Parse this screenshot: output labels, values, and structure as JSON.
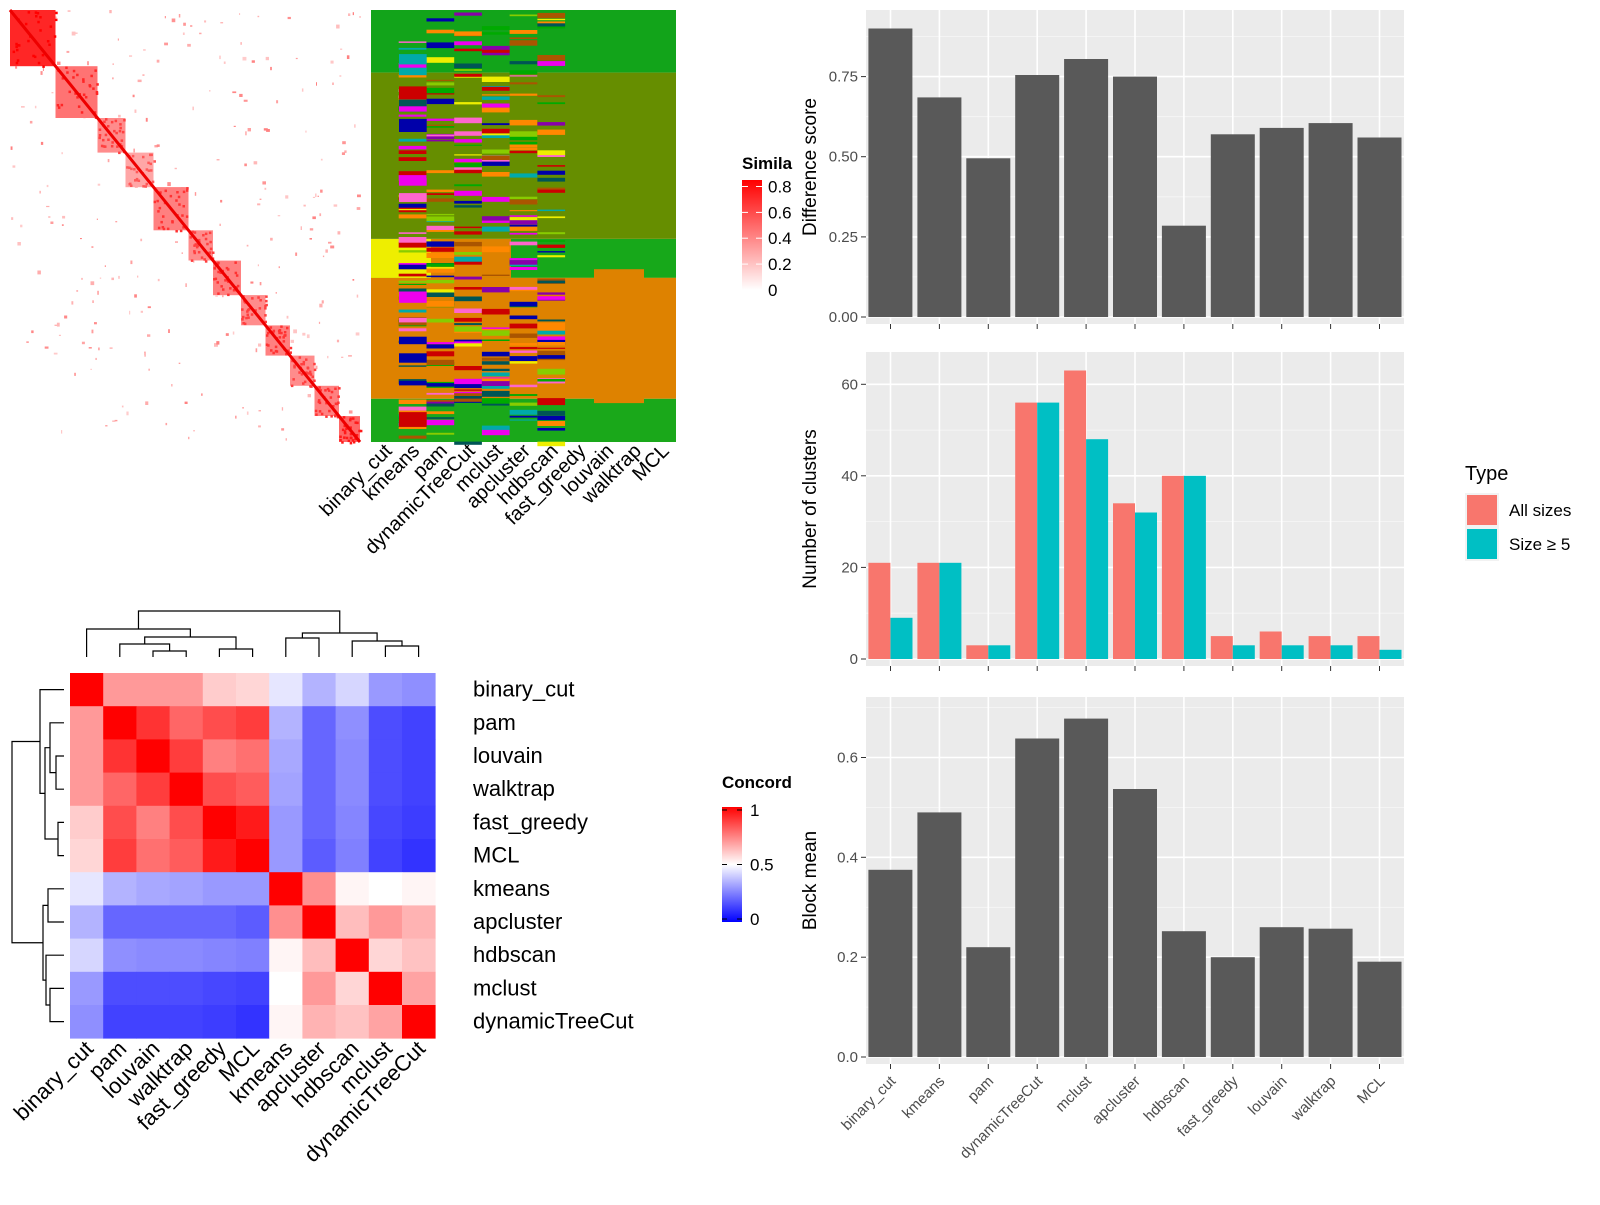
{
  "methods_similarity_order": [
    "binary_cut",
    "kmeans",
    "pam",
    "dynamicTreeCut",
    "mclust",
    "apcluster",
    "hdbscan",
    "fast_greedy",
    "louvain",
    "walktrap",
    "MCL"
  ],
  "similarity_legend": {
    "title": "Simila",
    "ticks": [
      "0.8",
      "0.6",
      "0.4",
      "0.2",
      "0"
    ]
  },
  "concordance": {
    "methods": [
      "binary_cut",
      "pam",
      "louvain",
      "walktrap",
      "fast_greedy",
      "MCL",
      "kmeans",
      "apcluster",
      "hdbscan",
      "mclust",
      "dynamicTreeCut"
    ],
    "legend_title": "Concord",
    "legend_ticks": [
      "1",
      "0.5",
      "0"
    ]
  },
  "type_legend": {
    "title": "Type",
    "items": [
      {
        "label": "All sizes",
        "color": "#F8766D"
      },
      {
        "label": "Size ≥ 5",
        "color": "#00BFC4"
      }
    ]
  },
  "chart_data": [
    {
      "type": "heatmap",
      "title": "Concordance",
      "rows": [
        "binary_cut",
        "pam",
        "louvain",
        "walktrap",
        "fast_greedy",
        "MCL",
        "kmeans",
        "apcluster",
        "hdbscan",
        "mclust",
        "dynamicTreeCut"
      ],
      "columns": [
        "binary_cut",
        "pam",
        "louvain",
        "walktrap",
        "fast_greedy",
        "MCL",
        "kmeans",
        "apcluster",
        "hdbscan",
        "mclust",
        "dynamicTreeCut"
      ],
      "values": [
        [
          1.0,
          0.7,
          0.7,
          0.7,
          0.6,
          0.58,
          0.45,
          0.35,
          0.42,
          0.3,
          0.28
        ],
        [
          0.7,
          1.0,
          0.9,
          0.8,
          0.85,
          0.88,
          0.35,
          0.2,
          0.28,
          0.15,
          0.13
        ],
        [
          0.7,
          0.9,
          1.0,
          0.88,
          0.75,
          0.78,
          0.33,
          0.2,
          0.27,
          0.15,
          0.13
        ],
        [
          0.7,
          0.8,
          0.88,
          1.0,
          0.85,
          0.82,
          0.32,
          0.2,
          0.27,
          0.15,
          0.13
        ],
        [
          0.6,
          0.85,
          0.75,
          0.85,
          1.0,
          0.95,
          0.3,
          0.2,
          0.26,
          0.14,
          0.12
        ],
        [
          0.58,
          0.88,
          0.78,
          0.82,
          0.95,
          1.0,
          0.3,
          0.18,
          0.25,
          0.13,
          0.1
        ],
        [
          0.45,
          0.35,
          0.33,
          0.32,
          0.3,
          0.3,
          1.0,
          0.72,
          0.52,
          0.5,
          0.52
        ],
        [
          0.35,
          0.2,
          0.2,
          0.2,
          0.2,
          0.18,
          0.72,
          1.0,
          0.63,
          0.7,
          0.65
        ],
        [
          0.42,
          0.28,
          0.27,
          0.27,
          0.26,
          0.25,
          0.52,
          0.63,
          1.0,
          0.58,
          0.62
        ],
        [
          0.3,
          0.15,
          0.15,
          0.15,
          0.14,
          0.13,
          0.5,
          0.7,
          0.58,
          1.0,
          0.68
        ],
        [
          0.28,
          0.13,
          0.13,
          0.13,
          0.12,
          0.1,
          0.52,
          0.65,
          0.62,
          0.68,
          1.0
        ]
      ],
      "scale": [
        0,
        1
      ]
    },
    {
      "type": "bar",
      "categories": [
        "binary_cut",
        "kmeans",
        "pam",
        "dynamicTreeCut",
        "mclust",
        "apcluster",
        "hdbscan",
        "fast_greedy",
        "louvain",
        "walktrap",
        "MCL"
      ],
      "values": [
        0.9,
        0.685,
        0.495,
        0.755,
        0.805,
        0.75,
        0.285,
        0.57,
        0.59,
        0.605,
        0.56
      ],
      "ylabel": "Difference score",
      "ylim": [
        0,
        0.9
      ],
      "yticks": [
        0.0,
        0.25,
        0.5,
        0.75
      ],
      "ytick_labels": [
        "0.00",
        "0.25",
        "0.50",
        "0.75"
      ],
      "color": "#595959"
    },
    {
      "type": "bar",
      "categories": [
        "binary_cut",
        "kmeans",
        "pam",
        "dynamicTreeCut",
        "mclust",
        "apcluster",
        "hdbscan",
        "fast_greedy",
        "louvain",
        "walktrap",
        "MCL"
      ],
      "series": [
        {
          "name": "All sizes",
          "values": [
            21,
            21,
            3,
            56,
            63,
            34,
            40,
            5,
            6,
            5,
            5
          ]
        },
        {
          "name": "Size ≥ 5",
          "values": [
            9,
            21,
            3,
            56,
            48,
            32,
            40,
            3,
            3,
            3,
            2
          ]
        }
      ],
      "ylabel": "Number of clusters",
      "ylim": [
        0,
        63
      ],
      "yticks": [
        0,
        20,
        40,
        60
      ],
      "ytick_labels": [
        "0",
        "20",
        "40",
        "60"
      ],
      "legend": "right"
    },
    {
      "type": "bar",
      "categories": [
        "binary_cut",
        "kmeans",
        "pam",
        "dynamicTreeCut",
        "mclust",
        "apcluster",
        "hdbscan",
        "fast_greedy",
        "louvain",
        "walktrap",
        "MCL"
      ],
      "values": [
        0.375,
        0.49,
        0.22,
        0.638,
        0.678,
        0.537,
        0.252,
        0.2,
        0.26,
        0.257,
        0.191
      ],
      "ylabel": "Block mean",
      "ylim": [
        0,
        0.68
      ],
      "yticks": [
        0.0,
        0.2,
        0.4,
        0.6
      ],
      "ytick_labels": [
        "0.0",
        "0.2",
        "0.4",
        "0.6"
      ],
      "color": "#595959"
    }
  ]
}
